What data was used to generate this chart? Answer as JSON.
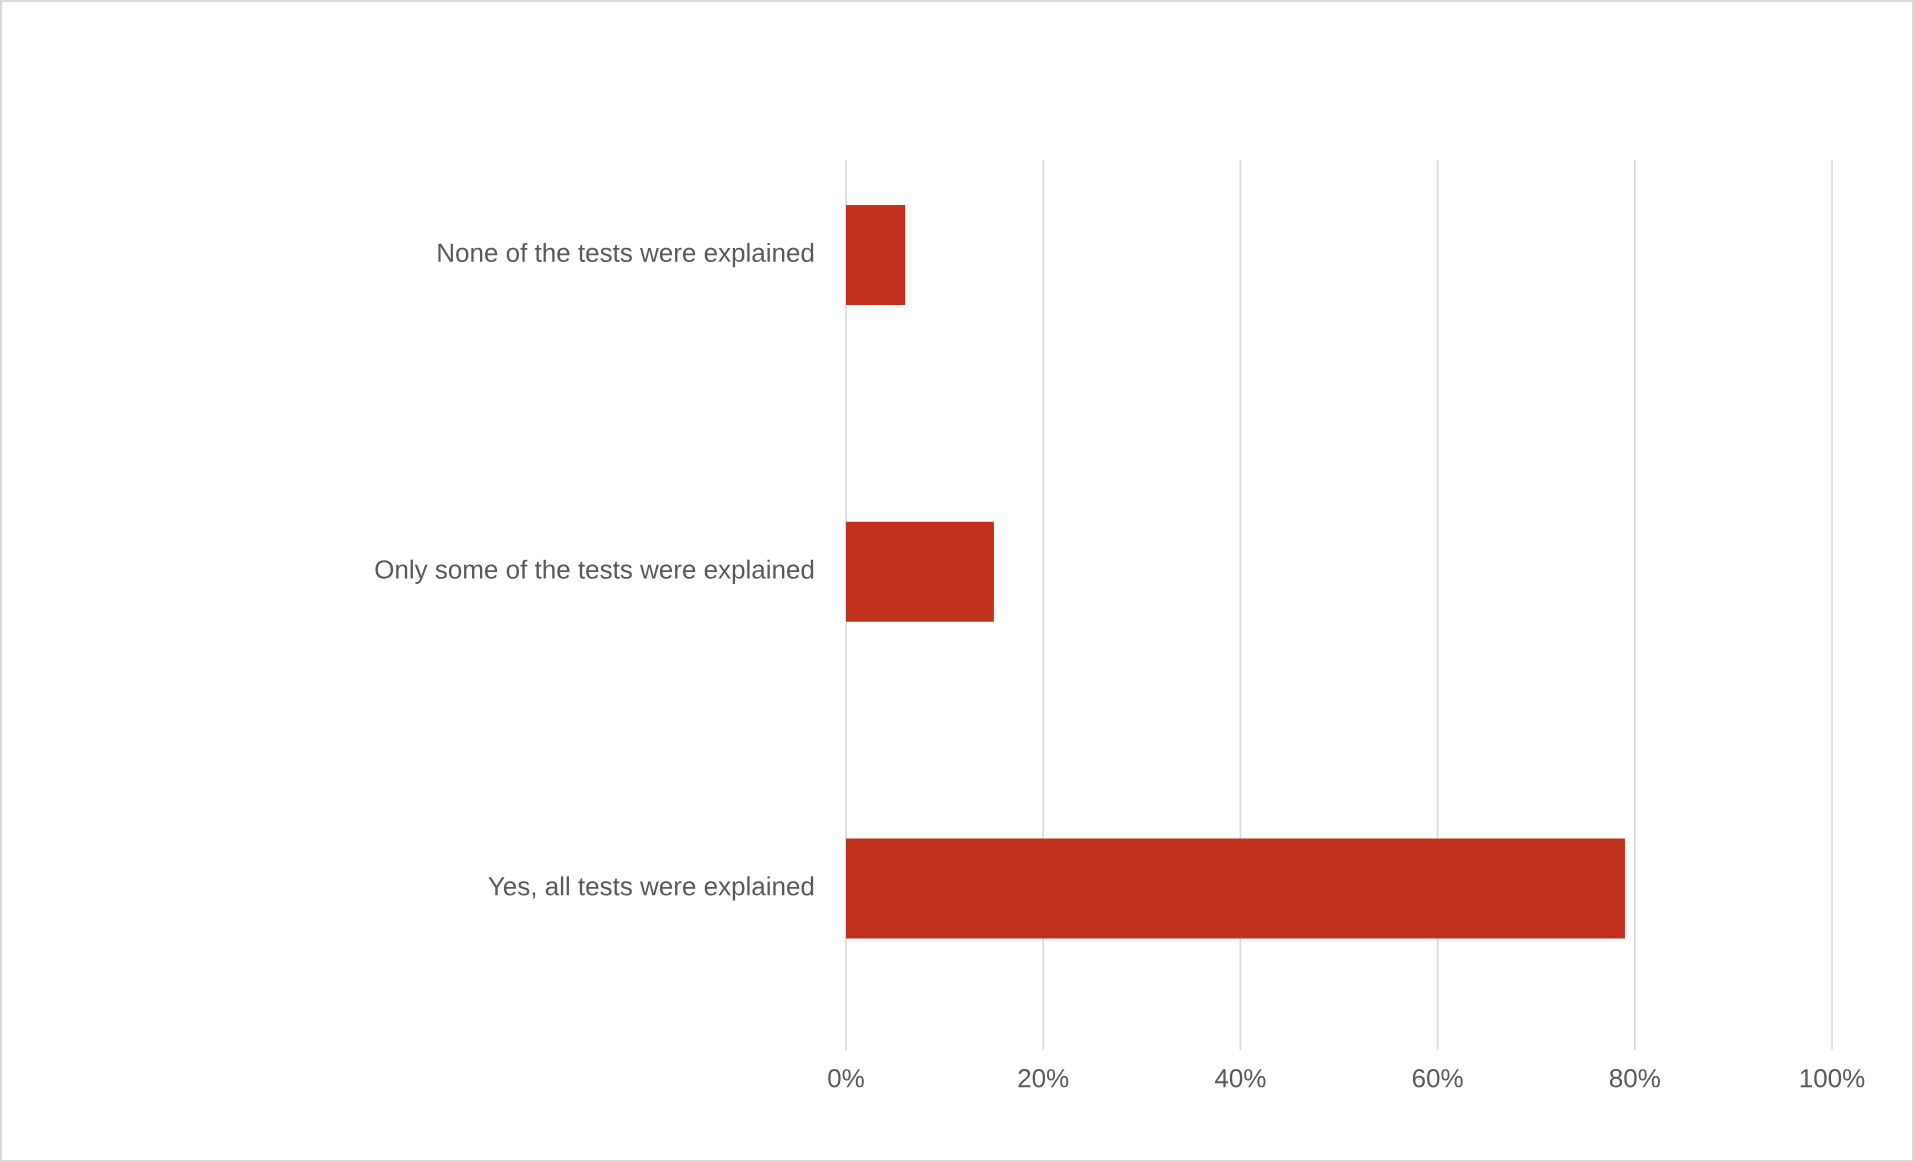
{
  "chart_data": {
    "type": "bar",
    "orientation": "horizontal",
    "categories": [
      "None of the tests were explained",
      "Only some of the tests were explained",
      "Yes, all tests were explained"
    ],
    "values": [
      6,
      15,
      79
    ],
    "color": "#c0311e",
    "xlim": [
      0,
      100
    ],
    "xticks": [
      {
        "value": 0,
        "label": "0%"
      },
      {
        "value": 20,
        "label": "20%"
      },
      {
        "value": 40,
        "label": "40%"
      },
      {
        "value": 60,
        "label": "60%"
      },
      {
        "value": 80,
        "label": "80%"
      },
      {
        "value": 100,
        "label": "100%"
      }
    ],
    "grid": "x"
  }
}
